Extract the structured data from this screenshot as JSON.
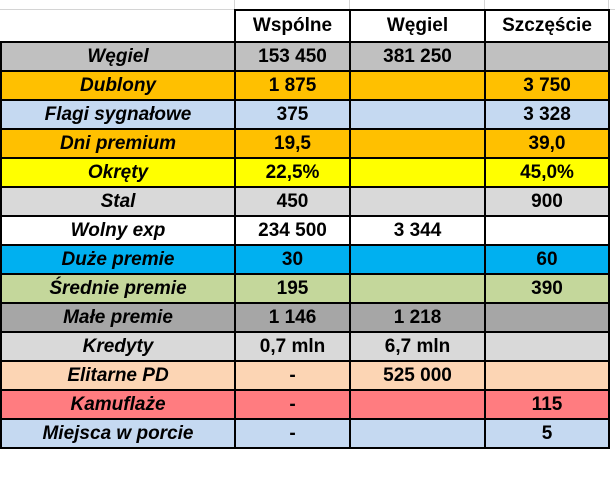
{
  "columns": [
    "Wspólne",
    "Węgiel",
    "Szczęście"
  ],
  "rows": [
    {
      "label": "Węgiel",
      "bg": "#c0c0c0",
      "cells": [
        "153 450",
        "381 250",
        ""
      ]
    },
    {
      "label": "Dublony",
      "bg": "#ffc000",
      "cells": [
        "1 875",
        "",
        "3 750"
      ]
    },
    {
      "label": "Flagi sygnałowe",
      "bg": "#c5d9f1",
      "cells": [
        "375",
        "",
        "3 328"
      ]
    },
    {
      "label": "Dni premium",
      "bg": "#ffc000",
      "cells": [
        "19,5",
        "",
        "39,0"
      ]
    },
    {
      "label": "Okręty",
      "bg": "#ffff00",
      "cells": [
        "22,5%",
        "",
        "45,0%"
      ]
    },
    {
      "label": "Stal",
      "bg": "#d9d9d9",
      "cells": [
        "450",
        "",
        "900"
      ]
    },
    {
      "label": "Wolny exp",
      "bg": "#ffffff",
      "cells": [
        "234 500",
        "3 344",
        ""
      ]
    },
    {
      "label": "Duże premie",
      "bg": "#00b0f0",
      "cells": [
        "30",
        "",
        "60"
      ]
    },
    {
      "label": "Średnie premie",
      "bg": "#c4d79b",
      "cells": [
        "195",
        "",
        "390"
      ]
    },
    {
      "label": "Małe premie",
      "bg": "#a6a6a6",
      "cells": [
        "1 146",
        "1 218",
        ""
      ]
    },
    {
      "label": "Kredyty",
      "bg": "#d9d9d9",
      "cells": [
        "0,7 mln",
        "6,7 mln",
        ""
      ]
    },
    {
      "label": "Elitarne PD",
      "bg": "#fcd5b4",
      "cells": [
        "-",
        "525 000",
        ""
      ]
    },
    {
      "label": "Kamuflaże",
      "bg": "#ff7c80",
      "cells": [
        "-",
        "",
        "115"
      ]
    },
    {
      "label": "Miejsca w porcie",
      "bg": "#c5d9f1",
      "cells": [
        "-",
        "",
        "5"
      ]
    }
  ]
}
